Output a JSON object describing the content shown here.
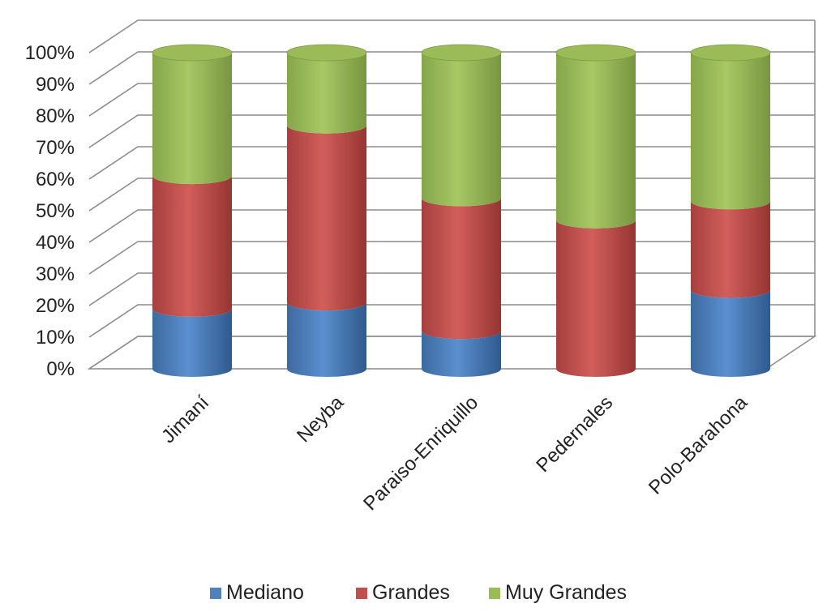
{
  "chart_data": {
    "type": "bar",
    "stacked": "percent",
    "style": "3d-cylinder",
    "title": "",
    "xlabel": "",
    "ylabel": "",
    "ylim": [
      0,
      100
    ],
    "yticks": [
      "0%",
      "10%",
      "20%",
      "30%",
      "40%",
      "50%",
      "60%",
      "70%",
      "80%",
      "90%",
      "100%"
    ],
    "grid": true,
    "legend_position": "bottom",
    "categories": [
      "Jimaní",
      "Neyba",
      "Paraiso-Enriquillo",
      "Pedernales",
      "Polo-Barahona"
    ],
    "series": [
      {
        "name": "Mediano",
        "color": "#4F81BD",
        "values": [
          19,
          21,
          12,
          0,
          25
        ]
      },
      {
        "name": "Grandes",
        "color": "#C0504D",
        "values": [
          42,
          56,
          42,
          47,
          28
        ]
      },
      {
        "name": "Muy Grandes",
        "color": "#9BBB59",
        "values": [
          39,
          23,
          46,
          53,
          47
        ]
      }
    ]
  }
}
